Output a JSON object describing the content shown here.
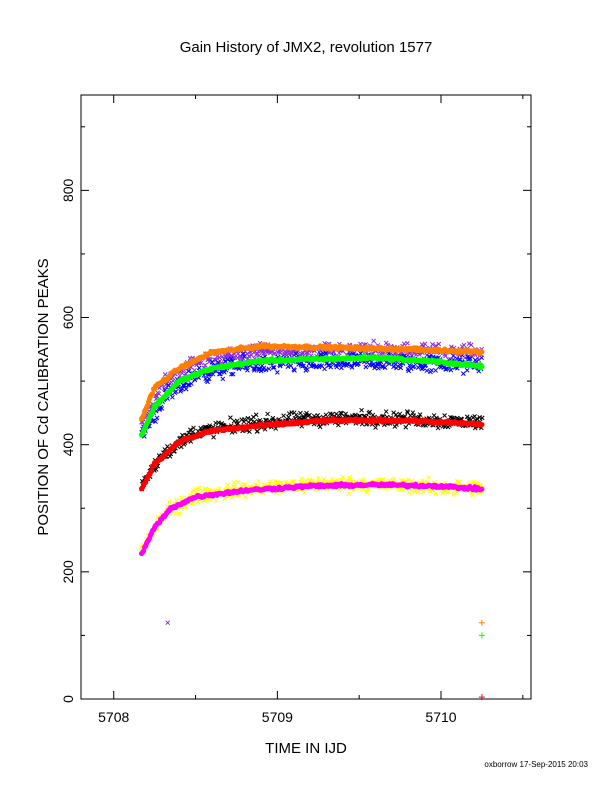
{
  "chart_data": {
    "type": "scatter",
    "title": "Gain History of JMX2, revolution 1577",
    "xlabel": "TIME IN IJD",
    "ylabel": "POSITION OF Cd CALIBRATION PEAKS",
    "xlim": [
      5707.8,
      5710.55
    ],
    "ylim": [
      0,
      950
    ],
    "xticks": [
      5708,
      5709,
      5710
    ],
    "yticks": [
      0,
      200,
      400,
      600,
      800
    ],
    "x_range": [
      5708.17,
      5710.25
    ],
    "grid": false,
    "legend": "none",
    "series": [
      {
        "color": "#8a2be2",
        "marker": "x",
        "scatter": 10,
        "trend": [
          [
            5708.17,
            430
          ],
          [
            5708.3,
            495
          ],
          [
            5708.5,
            530
          ],
          [
            5708.8,
            545
          ],
          [
            5709.2,
            548
          ],
          [
            5709.6,
            550
          ],
          [
            5710.25,
            545
          ]
        ]
      },
      {
        "color": "#0000ff",
        "marker": "x",
        "scatter": 12,
        "trend": [
          [
            5708.17,
            415
          ],
          [
            5708.3,
            470
          ],
          [
            5708.5,
            510
          ],
          [
            5708.8,
            525
          ],
          [
            5709.2,
            528
          ],
          [
            5709.6,
            530
          ],
          [
            5710.25,
            525
          ]
        ]
      },
      {
        "color": "#ff7f00",
        "marker": "line",
        "scatter": 2,
        "trend": [
          [
            5708.17,
            440
          ],
          [
            5708.25,
            490
          ],
          [
            5708.4,
            520
          ],
          [
            5708.6,
            545
          ],
          [
            5708.9,
            555
          ],
          [
            5709.3,
            553
          ],
          [
            5709.8,
            550
          ],
          [
            5710.25,
            546
          ]
        ]
      },
      {
        "color": "#00ff00",
        "marker": "line",
        "scatter": 2,
        "trend": [
          [
            5708.17,
            415
          ],
          [
            5708.25,
            460
          ],
          [
            5708.4,
            500
          ],
          [
            5708.6,
            520
          ],
          [
            5708.9,
            532
          ],
          [
            5709.3,
            535
          ],
          [
            5709.6,
            537
          ],
          [
            5710.0,
            530
          ],
          [
            5710.25,
            523
          ]
        ]
      },
      {
        "color": "#000000",
        "marker": "x",
        "scatter": 10,
        "trend": [
          [
            5708.17,
            335
          ],
          [
            5708.3,
            385
          ],
          [
            5708.5,
            420
          ],
          [
            5708.8,
            432
          ],
          [
            5709.2,
            440
          ],
          [
            5709.6,
            442
          ],
          [
            5710.25,
            435
          ]
        ]
      },
      {
        "color": "#ff0000",
        "marker": "line",
        "scatter": 2,
        "trend": [
          [
            5708.17,
            330
          ],
          [
            5708.25,
            370
          ],
          [
            5708.4,
            405
          ],
          [
            5708.6,
            422
          ],
          [
            5708.9,
            430
          ],
          [
            5709.3,
            438
          ],
          [
            5709.8,
            438
          ],
          [
            5710.25,
            432
          ]
        ]
      },
      {
        "color": "#ffff00",
        "marker": "x",
        "scatter": 10,
        "trend": [
          [
            5708.17,
            235
          ],
          [
            5708.3,
            290
          ],
          [
            5708.5,
            320
          ],
          [
            5708.8,
            330
          ],
          [
            5709.2,
            338
          ],
          [
            5709.6,
            338
          ],
          [
            5710.25,
            330
          ]
        ]
      },
      {
        "color": "#ff00ff",
        "marker": "line",
        "scatter": 2,
        "trend": [
          [
            5708.17,
            228
          ],
          [
            5708.25,
            270
          ],
          [
            5708.35,
            300
          ],
          [
            5708.5,
            318
          ],
          [
            5708.8,
            328
          ],
          [
            5709.2,
            335
          ],
          [
            5709.6,
            337
          ],
          [
            5710.0,
            335
          ],
          [
            5710.25,
            330
          ]
        ]
      }
    ],
    "outliers": [
      {
        "x": 5708.33,
        "y": 120,
        "color": "#8a2be2",
        "marker": "x"
      },
      {
        "x": 5710.25,
        "y": 120,
        "color": "#ff7f00",
        "marker": "+"
      },
      {
        "x": 5710.25,
        "y": 100,
        "color": "#00ff00",
        "marker": "+"
      },
      {
        "x": 5710.25,
        "y": 3,
        "color": "#ff0000",
        "marker": "+"
      }
    ]
  },
  "footer": "oxborrow 17-Sep-2015 20:03"
}
